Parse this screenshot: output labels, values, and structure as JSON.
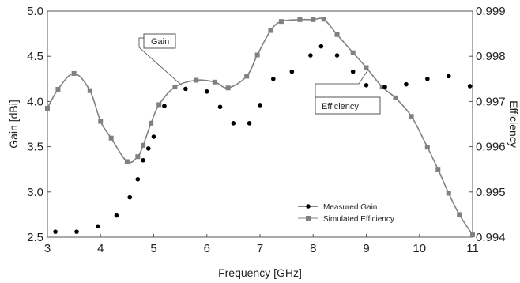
{
  "chart_data": {
    "type": "line",
    "x_axis": {
      "label": "Frequency [GHz]",
      "range": [
        3,
        11
      ],
      "ticks": [
        3,
        4,
        5,
        6,
        7,
        8,
        9,
        10,
        11
      ],
      "tick_labels": [
        "3",
        "4",
        "5",
        "6",
        "7",
        "8",
        "9",
        "10",
        "11"
      ]
    },
    "y_axis_left": {
      "label": "Gain [dBi]",
      "range": [
        2.5,
        5.0
      ],
      "ticks": [
        2.5,
        3.0,
        3.5,
        4.0,
        4.5,
        5.0
      ],
      "tick_labels": [
        "2.5",
        "3.0",
        "3.5",
        "4.0",
        "4.5",
        "5.0"
      ]
    },
    "y_axis_right": {
      "label": "Efficiency",
      "range": [
        0.994,
        0.999
      ],
      "ticks": [
        0.994,
        0.995,
        0.996,
        0.997,
        0.998,
        0.999
      ],
      "tick_labels": [
        "0.994",
        "0.995",
        "0.996",
        "0.997",
        "0.998",
        "0.999"
      ]
    },
    "grid": false,
    "legend": {
      "placement": "bottom-right",
      "entries": [
        {
          "name": "Measured Gain",
          "marker": "circle",
          "color": "#000000"
        },
        {
          "name": "Simulated Efficiency",
          "marker": "square",
          "color": "#808080"
        }
      ]
    },
    "annotations": [
      {
        "text": "Gain"
      },
      {
        "text": "Efficiency"
      }
    ],
    "series": [
      {
        "name": "Measured Gain",
        "axis": "left",
        "style": "markers",
        "color": "#000000",
        "x": [
          3.15,
          3.55,
          3.95,
          4.3,
          4.55,
          4.7,
          4.8,
          4.9,
          5.0,
          5.2,
          5.6,
          6.0,
          6.25,
          6.5,
          6.8,
          7.0,
          7.25,
          7.6,
          7.95,
          8.15,
          8.45,
          8.75,
          9.0,
          9.35,
          9.75,
          10.15,
          10.55,
          10.95
        ],
        "y": [
          2.56,
          2.56,
          2.62,
          2.74,
          2.94,
          3.14,
          3.35,
          3.48,
          3.61,
          3.95,
          4.14,
          4.11,
          3.94,
          3.76,
          3.76,
          3.96,
          4.25,
          4.33,
          4.51,
          4.61,
          4.51,
          4.33,
          4.18,
          4.16,
          4.19,
          4.25,
          4.28,
          4.17
        ]
      },
      {
        "name": "Simulated Efficiency",
        "axis": "right",
        "style": "line+markers",
        "color": "#808080",
        "x": [
          3.0,
          3.2,
          3.5,
          3.8,
          4.0,
          4.2,
          4.5,
          4.7,
          4.8,
          4.95,
          5.1,
          5.4,
          5.8,
          6.15,
          6.4,
          6.75,
          6.95,
          7.2,
          7.4,
          7.75,
          8.0,
          8.2,
          8.45,
          8.75,
          9.0,
          9.3,
          9.55,
          9.85,
          10.15,
          10.35,
          10.55,
          10.75,
          11.0
        ],
        "y": [
          0.99685,
          0.99727,
          0.99762,
          0.99724,
          0.99656,
          0.99619,
          0.99567,
          0.99578,
          0.99603,
          0.99652,
          0.99693,
          0.99732,
          0.99747,
          0.99743,
          0.9973,
          0.99756,
          0.99803,
          0.99857,
          0.99877,
          0.99881,
          0.99881,
          0.99882,
          0.99848,
          0.99808,
          0.99775,
          0.99732,
          0.99708,
          0.99667,
          0.99599,
          0.9955,
          0.99497,
          0.9945,
          0.99405
        ]
      }
    ]
  }
}
